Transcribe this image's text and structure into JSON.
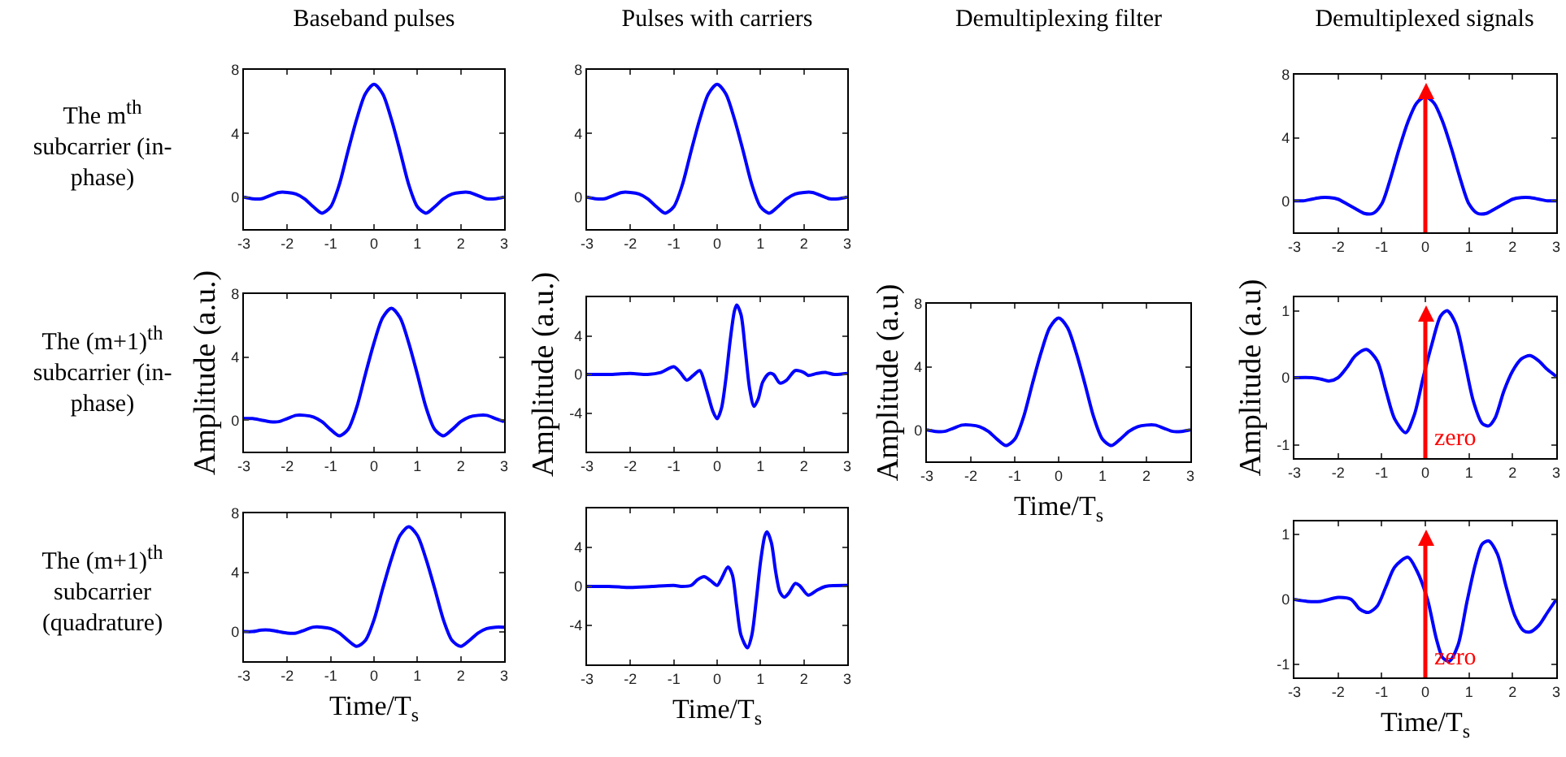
{
  "chart_data": [
    {
      "type": "line",
      "title": "Baseband pulses",
      "annotations": [
        "The m$^{th}$ subcarrier (in-phase)"
      ],
      "x": [
        -3,
        -2.8,
        -2.6,
        -2.4,
        -2.2,
        -2,
        -1.8,
        -1.6,
        -1.4,
        -1.2,
        -1,
        -0.8,
        -0.6,
        -0.4,
        -0.2,
        0,
        0.2,
        0.4,
        0.6,
        0.8,
        1,
        1.2,
        1.4,
        1.6,
        1.8,
        2,
        2.2,
        2.4,
        2.6,
        2.8,
        3
      ],
      "series": [
        {
          "color": "#0000ff",
          "values": [
            0,
            -0.1,
            -0.1,
            0.1,
            0.3,
            0.3,
            0.2,
            -0.1,
            -0.6,
            -1.0,
            -0.6,
            0.8,
            2.9,
            4.9,
            6.5,
            7.1,
            6.5,
            4.9,
            2.9,
            0.8,
            -0.6,
            -1.0,
            -0.6,
            -0.1,
            0.2,
            0.3,
            0.3,
            0.1,
            -0.1,
            -0.1,
            0
          ]
        }
      ],
      "xlim": [
        -3,
        3
      ],
      "xticks": [
        -3,
        -2,
        -1,
        0,
        1,
        2,
        3
      ],
      "ylim": [
        -2,
        8
      ],
      "yticks": [
        0,
        4,
        8
      ],
      "grid": false
    },
    {
      "type": "line",
      "title": "Pulses with carriers",
      "x": [
        -3,
        -2.8,
        -2.6,
        -2.4,
        -2.2,
        -2,
        -1.8,
        -1.6,
        -1.4,
        -1.2,
        -1,
        -0.8,
        -0.6,
        -0.4,
        -0.2,
        0,
        0.2,
        0.4,
        0.6,
        0.8,
        1,
        1.2,
        1.4,
        1.6,
        1.8,
        2,
        2.2,
        2.4,
        2.6,
        2.8,
        3
      ],
      "series": [
        {
          "color": "#0000ff",
          "values": [
            0,
            -0.1,
            -0.1,
            0.1,
            0.3,
            0.3,
            0.2,
            -0.1,
            -0.6,
            -1.0,
            -0.6,
            0.8,
            2.9,
            4.9,
            6.5,
            7.1,
            6.5,
            4.9,
            2.9,
            0.8,
            -0.6,
            -1.0,
            -0.6,
            -0.1,
            0.2,
            0.3,
            0.3,
            0.1,
            -0.1,
            -0.1,
            0
          ]
        }
      ],
      "xlim": [
        -3,
        3
      ],
      "xticks": [
        -3,
        -2,
        -1,
        0,
        1,
        2,
        3
      ],
      "ylim": [
        -2,
        8
      ],
      "yticks": [
        0,
        4,
        8
      ],
      "grid": false
    },
    {
      "type": "line",
      "title": "Demultiplexed signals",
      "x": [
        -3,
        -2.8,
        -2.6,
        -2.4,
        -2.2,
        -2,
        -1.8,
        -1.6,
        -1.4,
        -1.2,
        -1,
        -0.8,
        -0.6,
        -0.4,
        -0.2,
        0,
        0.2,
        0.4,
        0.6,
        0.8,
        1,
        1.2,
        1.4,
        1.6,
        1.8,
        2,
        2.2,
        2.4,
        2.6,
        2.8,
        3
      ],
      "series": [
        {
          "color": "#0000ff",
          "values": [
            0,
            0,
            0.1,
            0.2,
            0.2,
            0.1,
            -0.2,
            -0.5,
            -0.8,
            -0.8,
            -0.2,
            1.4,
            3.3,
            5.0,
            6.2,
            6.6,
            6.2,
            5.0,
            3.3,
            1.4,
            -0.2,
            -0.8,
            -0.8,
            -0.5,
            -0.2,
            0.1,
            0.2,
            0.2,
            0.1,
            0,
            0
          ]
        }
      ],
      "ref_lines": [
        {
          "axis": "x",
          "value": 0,
          "color": "#ff0000"
        }
      ],
      "xlim": [
        -3,
        3
      ],
      "xticks": [
        -3,
        -2,
        -1,
        0,
        1,
        2,
        3
      ],
      "ylim": [
        -2,
        8
      ],
      "yticks": [
        0,
        4,
        8
      ],
      "grid": false
    },
    {
      "type": "line",
      "ylabel": "Amplitude (a.u.)",
      "annotations": [
        "The (m+1)$^{th}$ subcarrier (in-phase)"
      ],
      "x": [
        -3,
        -2.8,
        -2.6,
        -2.4,
        -2.2,
        -2,
        -1.8,
        -1.6,
        -1.4,
        -1.2,
        -1,
        -0.8,
        -0.6,
        -0.4,
        -0.2,
        0,
        0.2,
        0.4,
        0.6,
        0.8,
        1,
        1.2,
        1.4,
        1.6,
        1.8,
        2,
        2.2,
        2.4,
        2.6,
        2.8,
        3
      ],
      "series": [
        {
          "color": "#0000ff",
          "values": [
            0.1,
            0.1,
            0,
            -0.1,
            -0.1,
            0.1,
            0.3,
            0.3,
            0.2,
            -0.1,
            -0.6,
            -1.0,
            -0.6,
            0.8,
            2.9,
            4.9,
            6.5,
            7.1,
            6.5,
            4.9,
            2.9,
            0.8,
            -0.6,
            -1.0,
            -0.6,
            -0.1,
            0.2,
            0.3,
            0.3,
            0.1,
            -0.1
          ]
        }
      ],
      "xlim": [
        -3,
        3
      ],
      "xticks": [
        -3,
        -2,
        -1,
        0,
        1,
        2,
        3
      ],
      "ylim": [
        -2,
        8
      ],
      "yticks": [
        0,
        4,
        8
      ],
      "grid": false
    },
    {
      "type": "line",
      "ylabel": "Amplitude (a.u.)",
      "x": [
        -3,
        -2.5,
        -2,
        -1.6,
        -1.3,
        -1.0,
        -0.85,
        -0.7,
        -0.55,
        -0.4,
        -0.25,
        -0.1,
        0,
        0.1,
        0.2,
        0.3,
        0.4,
        0.45,
        0.55,
        0.65,
        0.75,
        0.85,
        0.95,
        1.05,
        1.2,
        1.3,
        1.45,
        1.6,
        1.8,
        2.0,
        2.1,
        2.3,
        2.5,
        2.7,
        3
      ],
      "series": [
        {
          "color": "#0000ff",
          "values": [
            0,
            0,
            0.1,
            0,
            0.2,
            0.8,
            0.2,
            -0.6,
            -0.1,
            0.4,
            -1.5,
            -3.8,
            -4.6,
            -3.5,
            -0.5,
            3.5,
            6.6,
            7.2,
            6.2,
            2.5,
            -1.5,
            -3.3,
            -2.5,
            -0.8,
            0.1,
            0,
            -0.9,
            -0.6,
            0.4,
            0.2,
            -0.1,
            0.1,
            0.2,
            0,
            0.1
          ]
        }
      ],
      "xlim": [
        -3,
        3
      ],
      "xticks": [
        -3,
        -2,
        -1,
        0,
        1,
        2,
        3
      ],
      "ylim": [
        -8,
        8
      ],
      "yticks": [
        -4,
        0,
        4
      ],
      "grid": false
    },
    {
      "type": "line",
      "title": "Demultiplexing filter",
      "ylabel": "Amplitude (a.u)",
      "xlabel": "Time/T$_{s}$",
      "x": [
        -3,
        -2.8,
        -2.6,
        -2.4,
        -2.2,
        -2,
        -1.8,
        -1.6,
        -1.4,
        -1.2,
        -1,
        -0.8,
        -0.6,
        -0.4,
        -0.2,
        0,
        0.2,
        0.4,
        0.6,
        0.8,
        1,
        1.2,
        1.4,
        1.6,
        1.8,
        2,
        2.2,
        2.4,
        2.6,
        2.8,
        3
      ],
      "series": [
        {
          "color": "#0000ff",
          "values": [
            0,
            -0.1,
            -0.1,
            0.1,
            0.3,
            0.3,
            0.2,
            -0.1,
            -0.6,
            -1.0,
            -0.6,
            0.8,
            2.9,
            4.9,
            6.5,
            7.1,
            6.5,
            4.9,
            2.9,
            0.8,
            -0.6,
            -1.0,
            -0.6,
            -0.1,
            0.2,
            0.3,
            0.3,
            0.1,
            -0.1,
            -0.1,
            0
          ]
        }
      ],
      "xlim": [
        -3,
        3
      ],
      "xticks": [
        -3,
        -2,
        -1,
        0,
        1,
        2,
        3
      ],
      "ylim": [
        -2,
        8
      ],
      "yticks": [
        0,
        4,
        8
      ],
      "grid": false
    },
    {
      "type": "line",
      "ylabel": "Amplitude (a.u)",
      "x": [
        -3,
        -2.6,
        -2.4,
        -2.2,
        -2,
        -1.8,
        -1.6,
        -1.35,
        -1.1,
        -0.9,
        -0.7,
        -0.45,
        -0.25,
        -0.05,
        0.15,
        0.35,
        0.5,
        0.7,
        0.9,
        1.1,
        1.3,
        1.45,
        1.6,
        1.8,
        2.0,
        2.2,
        2.4,
        2.6,
        2.8,
        3
      ],
      "series": [
        {
          "color": "#0000ff",
          "values": [
            0,
            0,
            -0.02,
            -0.05,
            0,
            0.15,
            0.33,
            0.42,
            0.25,
            -0.2,
            -0.62,
            -0.82,
            -0.55,
            0,
            0.5,
            0.92,
            1.0,
            0.8,
            0.25,
            -0.35,
            -0.68,
            -0.72,
            -0.6,
            -0.2,
            0.1,
            0.28,
            0.33,
            0.25,
            0.12,
            0.02
          ]
        }
      ],
      "ref_lines": [
        {
          "axis": "x",
          "value": 0,
          "label": "zero",
          "color": "#ff0000"
        }
      ],
      "xlim": [
        -3,
        3
      ],
      "xticks": [
        -3,
        -2,
        -1,
        0,
        1,
        2,
        3
      ],
      "ylim": [
        -1.2,
        1.2
      ],
      "yticks": [
        -1,
        0,
        1
      ],
      "grid": false
    },
    {
      "type": "line",
      "xlabel": "Time/T$_{s}$",
      "annotations": [
        "The (m+1)$^{th}$ subcarrier (quadrature)"
      ],
      "x": [
        -3,
        -2.8,
        -2.6,
        -2.4,
        -2.2,
        -2,
        -1.8,
        -1.6,
        -1.4,
        -1.2,
        -1,
        -0.8,
        -0.6,
        -0.4,
        -0.2,
        0,
        0.2,
        0.4,
        0.6,
        0.8,
        1,
        1.2,
        1.4,
        1.6,
        1.8,
        2,
        2.2,
        2.4,
        2.6,
        2.8,
        3
      ],
      "series": [
        {
          "color": "#0000ff",
          "values": [
            0,
            0,
            0.1,
            0.1,
            0,
            -0.1,
            -0.1,
            0.1,
            0.3,
            0.3,
            0.2,
            -0.1,
            -0.6,
            -1.0,
            -0.6,
            0.8,
            2.9,
            4.9,
            6.5,
            7.1,
            6.5,
            4.9,
            2.9,
            0.8,
            -0.6,
            -1.0,
            -0.6,
            -0.1,
            0.2,
            0.3,
            0.3
          ]
        }
      ],
      "xlim": [
        -3,
        3
      ],
      "xticks": [
        -3,
        -2,
        -1,
        0,
        1,
        2,
        3
      ],
      "ylim": [
        -2,
        8
      ],
      "yticks": [
        0,
        4,
        8
      ],
      "grid": false
    },
    {
      "type": "line",
      "xlabel": "Time/T$_{s}$",
      "x": [
        -3,
        -2.5,
        -2,
        -1.5,
        -1,
        -0.8,
        -0.6,
        -0.45,
        -0.3,
        -0.15,
        0,
        0.1,
        0.25,
        0.35,
        0.45,
        0.55,
        0.7,
        0.8,
        0.9,
        1.0,
        1.1,
        1.15,
        1.25,
        1.35,
        1.45,
        1.55,
        1.65,
        1.8,
        1.9,
        2.1,
        2.3,
        2.5,
        3
      ],
      "series": [
        {
          "color": "#0000ff",
          "values": [
            0,
            0,
            -0.1,
            0,
            0.1,
            0,
            0.1,
            0.7,
            1.0,
            0.6,
            0.1,
            0.8,
            2.0,
            1.2,
            -2.0,
            -5.0,
            -6.3,
            -5.0,
            -1.5,
            2.5,
            5.2,
            5.6,
            4.5,
            1.5,
            -0.6,
            -1.1,
            -0.7,
            0.3,
            0.1,
            -0.9,
            -0.4,
            0,
            0.1
          ]
        }
      ],
      "xlim": [
        -3,
        3
      ],
      "xticks": [
        -3,
        -2,
        -1,
        0,
        1,
        2,
        3
      ],
      "ylim": [
        -8,
        8
      ],
      "yticks": [
        -4,
        0,
        4
      ],
      "grid": false
    },
    {
      "type": "line",
      "xlabel": "Time/T$_{s}$",
      "x": [
        -3,
        -2.7,
        -2.4,
        -2.0,
        -1.7,
        -1.5,
        -1.3,
        -1.1,
        -0.9,
        -0.7,
        -0.4,
        -0.2,
        0.05,
        0.25,
        0.4,
        0.55,
        0.75,
        0.95,
        1.15,
        1.3,
        1.45,
        1.65,
        1.85,
        2.05,
        2.25,
        2.4,
        2.6,
        2.8,
        3
      ],
      "series": [
        {
          "color": "#0000ff",
          "values": [
            0,
            -0.03,
            -0.03,
            0.03,
            0,
            -0.15,
            -0.2,
            -0.1,
            0.2,
            0.5,
            0.65,
            0.45,
            0,
            -0.6,
            -0.9,
            -0.95,
            -0.7,
            -0.05,
            0.55,
            0.85,
            0.9,
            0.7,
            0.2,
            -0.25,
            -0.48,
            -0.5,
            -0.4,
            -0.2,
            0
          ]
        }
      ],
      "ref_lines": [
        {
          "axis": "x",
          "value": 0,
          "label": "zero",
          "color": "#ff0000"
        }
      ],
      "xlim": [
        -3,
        3
      ],
      "xticks": [
        -3,
        -2,
        -1,
        0,
        1,
        2,
        3
      ],
      "ylim": [
        -1.2,
        1.2
      ],
      "yticks": [
        -1,
        0,
        1
      ],
      "grid": false
    }
  ]
}
